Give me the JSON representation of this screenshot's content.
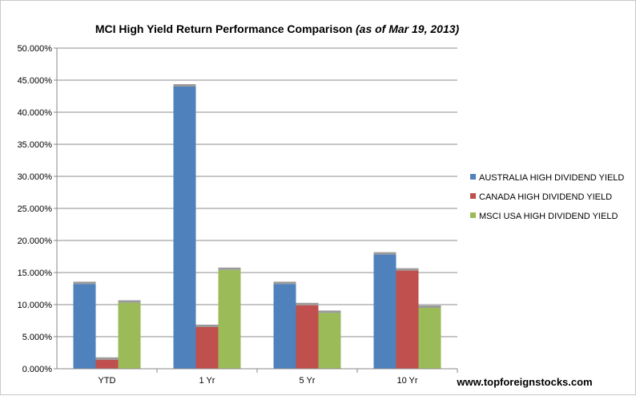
{
  "chart_data": {
    "type": "bar",
    "title": "MCI High Yield Return Performance Comparison",
    "title_note": "(as of Mar 19, 2013)",
    "categories": [
      "YTD",
      "1 Yr",
      "5 Yr",
      "10 Yr"
    ],
    "series": [
      {
        "name": "AUSTRALIA HIGH DIVIDEND YIELD",
        "color": "#4f81bd",
        "values": [
          13.2,
          44.0,
          13.2,
          17.8
        ]
      },
      {
        "name": "CANADA HIGH DIVIDEND YIELD",
        "color": "#c0504d",
        "values": [
          1.4,
          6.5,
          9.9,
          15.3
        ]
      },
      {
        "name": "MSCI USA HIGH DIVIDEND YIELD",
        "color": "#9bbb59",
        "values": [
          10.3,
          15.4,
          8.7,
          9.5
        ]
      }
    ],
    "ylim": [
      0,
      50
    ],
    "yticks": [
      "0.000%",
      "5.000%",
      "10.000%",
      "15.000%",
      "20.000%",
      "25.000%",
      "30.000%",
      "35.000%",
      "40.000%",
      "45.000%",
      "50.000%"
    ],
    "xlabel": "",
    "ylabel": "",
    "grid": true,
    "legend_position": "right"
  },
  "footer": {
    "source": "www.topforeignstocks.com"
  }
}
